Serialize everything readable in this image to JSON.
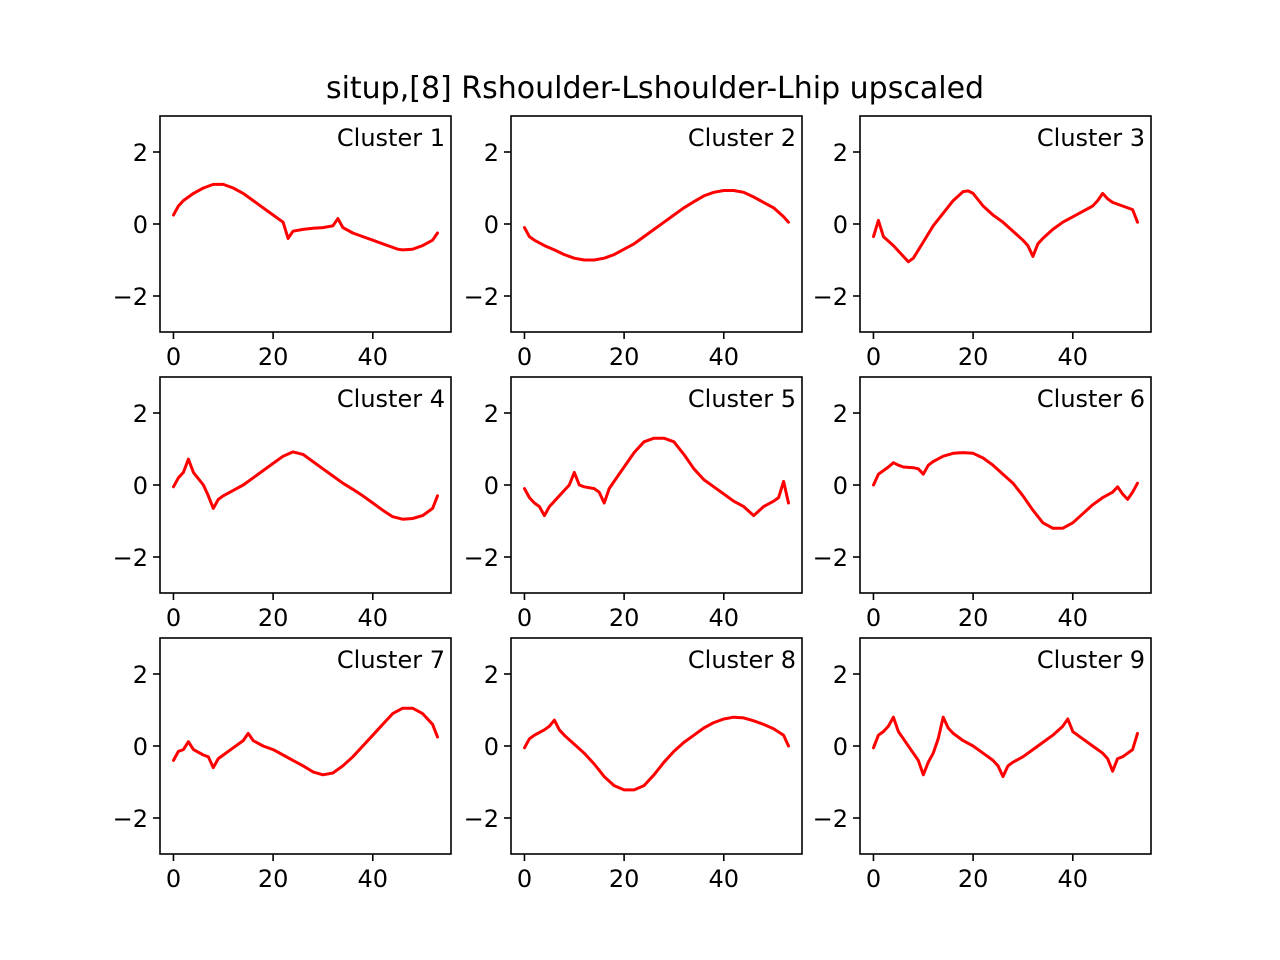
{
  "chart_data": {
    "type": "line",
    "title": "situp,[8] Rshoulder-Lshoulder-Lhip upscaled",
    "line_color": "#ff0000",
    "layout": "3x3 grid of subplots",
    "subplots": [
      {
        "label": "Cluster 1",
        "xlim": [
          -2.7,
          55.7
        ],
        "ylim": [
          -3,
          3
        ],
        "xticks": [
          0,
          20,
          40
        ],
        "xtick_labels": [
          "0",
          "20",
          "40"
        ],
        "yticks": [
          2,
          0,
          -2
        ],
        "ytick_labels": [
          "2",
          "0",
          "−2"
        ],
        "x": [
          0,
          1,
          2,
          4,
          6,
          8,
          10,
          12,
          14,
          16,
          18,
          20,
          22,
          23,
          24,
          26,
          28,
          30,
          32,
          33,
          34,
          36,
          38,
          40,
          42,
          44,
          45,
          46,
          48,
          50,
          52,
          53
        ],
        "y": [
          0.25,
          0.5,
          0.65,
          0.85,
          1.0,
          1.1,
          1.1,
          1.0,
          0.85,
          0.65,
          0.45,
          0.25,
          0.05,
          -0.4,
          -0.2,
          -0.15,
          -0.12,
          -0.1,
          -0.05,
          0.15,
          -0.1,
          -0.25,
          -0.35,
          -0.45,
          -0.55,
          -0.65,
          -0.7,
          -0.72,
          -0.7,
          -0.6,
          -0.45,
          -0.25
        ]
      },
      {
        "label": "Cluster 2",
        "xlim": [
          -2.7,
          55.7
        ],
        "ylim": [
          -3,
          3
        ],
        "xticks": [
          0,
          20,
          40
        ],
        "xtick_labels": [
          "0",
          "20",
          "40"
        ],
        "yticks": [
          2,
          0,
          -2
        ],
        "ytick_labels": [
          "2",
          "0",
          "−2"
        ],
        "x": [
          0,
          1,
          2,
          4,
          6,
          8,
          10,
          12,
          14,
          16,
          18,
          20,
          22,
          24,
          26,
          28,
          30,
          32,
          34,
          36,
          38,
          40,
          42,
          44,
          46,
          48,
          50,
          52,
          53
        ],
        "y": [
          -0.1,
          -0.35,
          -0.45,
          -0.6,
          -0.72,
          -0.85,
          -0.95,
          -1.0,
          -1.0,
          -0.95,
          -0.85,
          -0.7,
          -0.55,
          -0.35,
          -0.15,
          0.05,
          0.25,
          0.45,
          0.62,
          0.78,
          0.88,
          0.93,
          0.93,
          0.88,
          0.75,
          0.6,
          0.45,
          0.2,
          0.05
        ]
      },
      {
        "label": "Cluster 3",
        "xlim": [
          -2.7,
          55.7
        ],
        "ylim": [
          -3,
          3
        ],
        "xticks": [
          0,
          20,
          40
        ],
        "xtick_labels": [
          "0",
          "20",
          "40"
        ],
        "yticks": [
          2,
          0,
          -2
        ],
        "ytick_labels": [
          "2",
          "0",
          "−2"
        ],
        "x": [
          0,
          1,
          2,
          4,
          6,
          7,
          8,
          10,
          12,
          14,
          16,
          18,
          19,
          20,
          22,
          24,
          26,
          28,
          30,
          31,
          32,
          33,
          34,
          36,
          38,
          40,
          42,
          44,
          45,
          46,
          47,
          48,
          50,
          52,
          53
        ],
        "y": [
          -0.35,
          0.1,
          -0.35,
          -0.6,
          -0.9,
          -1.05,
          -0.95,
          -0.5,
          -0.05,
          0.3,
          0.65,
          0.9,
          0.92,
          0.85,
          0.5,
          0.25,
          0.05,
          -0.2,
          -0.45,
          -0.6,
          -0.9,
          -0.55,
          -0.4,
          -0.15,
          0.05,
          0.2,
          0.35,
          0.5,
          0.65,
          0.85,
          0.7,
          0.6,
          0.5,
          0.4,
          0.05
        ]
      },
      {
        "label": "Cluster 4",
        "xlim": [
          -2.7,
          55.7
        ],
        "ylim": [
          -3,
          3
        ],
        "xticks": [
          0,
          20,
          40
        ],
        "xtick_labels": [
          "0",
          "20",
          "40"
        ],
        "yticks": [
          2,
          0,
          -2
        ],
        "ytick_labels": [
          "2",
          "0",
          "−2"
        ],
        "x": [
          0,
          1,
          2,
          3,
          4,
          6,
          7,
          8,
          9,
          10,
          12,
          14,
          16,
          18,
          20,
          22,
          24,
          26,
          28,
          30,
          32,
          34,
          36,
          38,
          40,
          42,
          44,
          46,
          48,
          50,
          52,
          53
        ],
        "y": [
          -0.05,
          0.2,
          0.35,
          0.72,
          0.35,
          0.0,
          -0.3,
          -0.65,
          -0.4,
          -0.3,
          -0.15,
          0.0,
          0.2,
          0.4,
          0.6,
          0.8,
          0.92,
          0.85,
          0.65,
          0.45,
          0.25,
          0.05,
          -0.12,
          -0.3,
          -0.5,
          -0.7,
          -0.88,
          -0.95,
          -0.93,
          -0.85,
          -0.65,
          -0.3
        ]
      },
      {
        "label": "Cluster 5",
        "xlim": [
          -2.7,
          55.7
        ],
        "ylim": [
          -3,
          3
        ],
        "xticks": [
          0,
          20,
          40
        ],
        "xtick_labels": [
          "0",
          "20",
          "40"
        ],
        "yticks": [
          2,
          0,
          -2
        ],
        "ytick_labels": [
          "2",
          "0",
          "−2"
        ],
        "x": [
          0,
          1,
          2,
          3,
          4,
          5,
          6,
          8,
          9,
          10,
          11,
          12,
          14,
          15,
          16,
          17,
          18,
          20,
          22,
          24,
          26,
          28,
          30,
          32,
          34,
          36,
          38,
          40,
          42,
          44,
          46,
          48,
          50,
          51,
          52,
          53
        ],
        "y": [
          -0.1,
          -0.35,
          -0.5,
          -0.6,
          -0.85,
          -0.6,
          -0.45,
          -0.15,
          0.0,
          0.35,
          0.0,
          -0.05,
          -0.1,
          -0.2,
          -0.5,
          -0.1,
          0.1,
          0.5,
          0.9,
          1.2,
          1.3,
          1.3,
          1.2,
          0.85,
          0.45,
          0.15,
          -0.05,
          -0.25,
          -0.45,
          -0.6,
          -0.85,
          -0.6,
          -0.45,
          -0.35,
          0.1,
          -0.5
        ]
      },
      {
        "label": "Cluster 6",
        "xlim": [
          -2.7,
          55.7
        ],
        "ylim": [
          -3,
          3
        ],
        "xticks": [
          0,
          20,
          40
        ],
        "xtick_labels": [
          "0",
          "20",
          "40"
        ],
        "yticks": [
          2,
          0,
          -2
        ],
        "ytick_labels": [
          "2",
          "0",
          "−2"
        ],
        "x": [
          0,
          1,
          2,
          3,
          4,
          5,
          6,
          8,
          9,
          10,
          11,
          12,
          14,
          16,
          18,
          20,
          22,
          24,
          26,
          28,
          30,
          32,
          34,
          36,
          38,
          40,
          42,
          44,
          46,
          48,
          49,
          50,
          51,
          52,
          53
        ],
        "y": [
          0.0,
          0.3,
          0.4,
          0.5,
          0.62,
          0.55,
          0.5,
          0.48,
          0.45,
          0.3,
          0.55,
          0.65,
          0.8,
          0.88,
          0.9,
          0.88,
          0.75,
          0.55,
          0.3,
          0.05,
          -0.3,
          -0.7,
          -1.05,
          -1.2,
          -1.2,
          -1.05,
          -0.8,
          -0.55,
          -0.35,
          -0.2,
          -0.05,
          -0.25,
          -0.4,
          -0.2,
          0.05
        ]
      },
      {
        "label": "Cluster 7",
        "xlim": [
          -2.7,
          55.7
        ],
        "ylim": [
          -3,
          3
        ],
        "xticks": [
          0,
          20,
          40
        ],
        "xtick_labels": [
          "0",
          "20",
          "40"
        ],
        "yticks": [
          2,
          0,
          -2
        ],
        "ytick_labels": [
          "2",
          "0",
          "−2"
        ],
        "x": [
          0,
          1,
          2,
          3,
          4,
          6,
          7,
          8,
          9,
          10,
          12,
          14,
          15,
          16,
          18,
          20,
          22,
          24,
          26,
          28,
          30,
          32,
          34,
          36,
          38,
          40,
          42,
          44,
          46,
          48,
          50,
          52,
          53
        ],
        "y": [
          -0.4,
          -0.15,
          -0.1,
          0.12,
          -0.1,
          -0.25,
          -0.3,
          -0.6,
          -0.35,
          -0.25,
          -0.05,
          0.15,
          0.35,
          0.15,
          0.0,
          -0.1,
          -0.25,
          -0.4,
          -0.55,
          -0.72,
          -0.8,
          -0.75,
          -0.55,
          -0.3,
          0.0,
          0.3,
          0.6,
          0.9,
          1.05,
          1.05,
          0.9,
          0.6,
          0.25
        ]
      },
      {
        "label": "Cluster 8",
        "xlim": [
          -2.7,
          55.7
        ],
        "ylim": [
          -3,
          3
        ],
        "xticks": [
          0,
          20,
          40
        ],
        "xtick_labels": [
          "0",
          "20",
          "40"
        ],
        "yticks": [
          2,
          0,
          -2
        ],
        "ytick_labels": [
          "2",
          "0",
          "−2"
        ],
        "x": [
          0,
          1,
          2,
          4,
          5,
          6,
          7,
          8,
          10,
          12,
          14,
          16,
          18,
          20,
          22,
          24,
          26,
          28,
          30,
          32,
          34,
          36,
          38,
          40,
          42,
          44,
          46,
          48,
          50,
          52,
          53
        ],
        "y": [
          -0.05,
          0.2,
          0.3,
          0.45,
          0.55,
          0.72,
          0.45,
          0.3,
          0.05,
          -0.2,
          -0.5,
          -0.85,
          -1.1,
          -1.22,
          -1.22,
          -1.1,
          -0.8,
          -0.45,
          -0.15,
          0.1,
          0.3,
          0.5,
          0.65,
          0.75,
          0.8,
          0.78,
          0.7,
          0.6,
          0.48,
          0.3,
          0.0
        ]
      },
      {
        "label": "Cluster 9",
        "xlim": [
          -2.7,
          55.7
        ],
        "ylim": [
          -3,
          3
        ],
        "xticks": [
          0,
          20,
          40
        ],
        "xtick_labels": [
          "0",
          "20",
          "40"
        ],
        "yticks": [
          2,
          0,
          -2
        ],
        "ytick_labels": [
          "2",
          "0",
          "−2"
        ],
        "x": [
          0,
          1,
          2,
          3,
          4,
          5,
          6,
          8,
          9,
          10,
          11,
          12,
          13,
          14,
          15,
          16,
          18,
          20,
          22,
          24,
          25,
          26,
          27,
          28,
          30,
          32,
          34,
          36,
          38,
          39,
          40,
          42,
          44,
          46,
          47,
          48,
          49,
          50,
          52,
          53
        ],
        "y": [
          -0.05,
          0.3,
          0.4,
          0.55,
          0.8,
          0.4,
          0.2,
          -0.2,
          -0.4,
          -0.8,
          -0.45,
          -0.2,
          0.2,
          0.8,
          0.5,
          0.35,
          0.15,
          0.0,
          -0.2,
          -0.4,
          -0.55,
          -0.85,
          -0.55,
          -0.45,
          -0.3,
          -0.1,
          0.1,
          0.3,
          0.55,
          0.75,
          0.4,
          0.2,
          0.0,
          -0.2,
          -0.35,
          -0.7,
          -0.35,
          -0.3,
          -0.1,
          0.35
        ]
      }
    ]
  }
}
